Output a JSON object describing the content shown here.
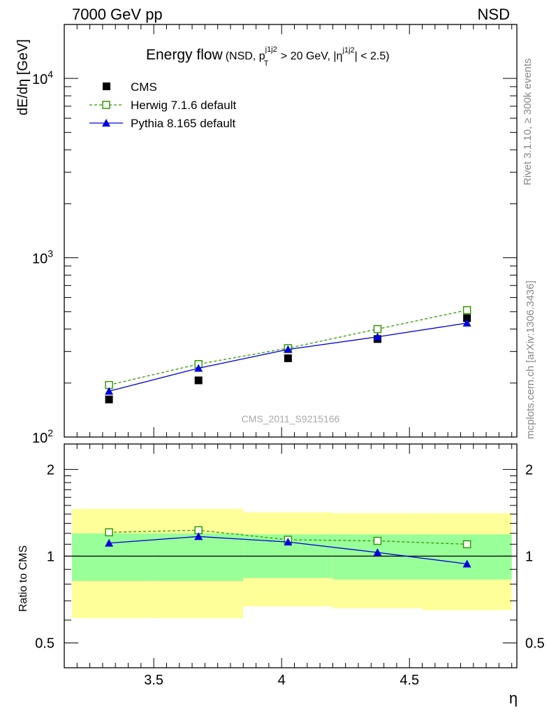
{
  "header": {
    "collision": "7000 GeV pp",
    "process": "NSD"
  },
  "side_labels": {
    "rivet": "Rivet 3.1.10, ≥ 300k events",
    "mcplots": "mcplots.cern.ch [arXiv:1306.3436]"
  },
  "plot_title": {
    "main": "Energy flow",
    "open": "(NSD, p",
    "sup1": "j1j2",
    "sub1": "T",
    "mid": " > 20 GeV, |η",
    "sup2": "j1j2",
    "close": "| < 2.5)"
  },
  "watermark": "CMS_2011_S9215166",
  "legend": {
    "cms": "CMS",
    "herwig": "Herwig 7.1.6 default",
    "pythia": "Pythia 8.165 default"
  },
  "colors": {
    "cms": "#000000",
    "herwig": "#339900",
    "pythia": "#0000dd",
    "band_inner": "#99ff99",
    "band_outer": "#ffff99"
  },
  "chart_data": [
    {
      "type": "scatter",
      "panel": "main",
      "ylabel": "dE/dη [GeV]",
      "yscale": "log",
      "xlim": [
        3.15,
        4.92
      ],
      "ylim": [
        100,
        20000
      ],
      "ytick_labels": [
        {
          "base": "10",
          "exp": "2",
          "value": 100
        },
        {
          "base": "10",
          "exp": "3",
          "value": 1000
        },
        {
          "base": "10",
          "exp": "4",
          "value": 10000
        }
      ],
      "x": [
        3.325,
        3.675,
        4.025,
        4.375,
        4.725
      ],
      "series": [
        {
          "name": "CMS",
          "key": "cms",
          "values": [
            162,
            207,
            275,
            352,
            460
          ]
        },
        {
          "name": "Herwig 7.1.6 default",
          "key": "herwig",
          "values": [
            195,
            255,
            313,
            400,
            510
          ]
        },
        {
          "name": "Pythia 8.165 default",
          "key": "pythia",
          "values": [
            180,
            242,
            308,
            362,
            432
          ]
        }
      ]
    },
    {
      "type": "line",
      "panel": "ratio",
      "ylabel": "Ratio to CMS",
      "xlabel": "η",
      "yscale": "log",
      "xlim": [
        3.15,
        4.92
      ],
      "ylim": [
        0.41,
        2.45
      ],
      "ytick_labels": [
        "0.5",
        "1",
        "2"
      ],
      "ytick_values": [
        0.5,
        1,
        2
      ],
      "xtick_labels": [
        "3.5",
        "4",
        "4.5"
      ],
      "xtick_values": [
        3.5,
        4,
        4.5
      ],
      "x": [
        3.325,
        3.675,
        4.025,
        4.375,
        4.725
      ],
      "bands": {
        "edges": [
          3.15,
          3.5,
          3.85,
          4.2,
          4.55,
          4.9
        ],
        "inner_low": [
          0.82,
          0.82,
          0.84,
          0.83,
          0.83
        ],
        "inner_high": [
          1.2,
          1.2,
          1.19,
          1.19,
          1.19
        ],
        "outer_low": [
          0.61,
          0.61,
          0.67,
          0.66,
          0.65
        ],
        "outer_high": [
          1.46,
          1.46,
          1.42,
          1.41,
          1.41
        ]
      },
      "series": [
        {
          "name": "Herwig 7.1.6 default",
          "key": "herwig",
          "values": [
            1.21,
            1.23,
            1.14,
            1.13,
            1.1
          ]
        },
        {
          "name": "Pythia 8.165 default",
          "key": "pythia",
          "values": [
            1.11,
            1.17,
            1.12,
            1.03,
            0.94
          ]
        }
      ]
    }
  ]
}
